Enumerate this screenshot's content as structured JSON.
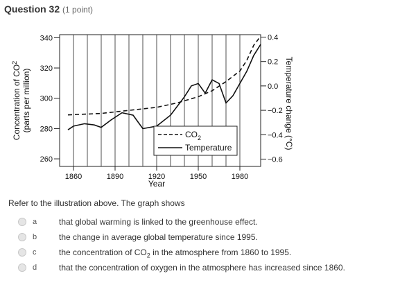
{
  "question": {
    "title": "Question 32",
    "points": "(1 point)"
  },
  "prompt": "Refer to the illustration above. The graph shows",
  "choices": [
    {
      "letter": "a",
      "text": "that global warming is linked to the greenhouse effect."
    },
    {
      "letter": "b",
      "text": "the change in average global temperature since 1995."
    },
    {
      "letter": "c",
      "text_before": "the concentration of CO",
      "text_sub": "2",
      "text_after": " in the atmosphere from 1860 to 1995."
    },
    {
      "letter": "d",
      "text": "that the concentration of oxygen in the atmosphere has increased since 1860."
    }
  ],
  "chart_data": {
    "type": "line",
    "xlabel": "Year",
    "ylabel_left_line1": "Concentration of CO",
    "ylabel_left_sub": "2",
    "ylabel_left_line2": "(parts per million)",
    "ylabel_right": "Temperature change (°C)",
    "x_ticks": [
      1860,
      1890,
      1920,
      1950,
      1980
    ],
    "y_left_ticks": [
      260,
      280,
      300,
      320,
      340
    ],
    "y_right_ticks": [
      "0.4",
      "0.2",
      "0.0",
      "−0.2",
      "−0.4",
      "−0.6"
    ],
    "y_right_values": [
      0.4,
      0.2,
      0.0,
      -0.2,
      -0.4,
      -0.6
    ],
    "xlim": [
      1850,
      1995
    ],
    "ylim_left": [
      255,
      342
    ],
    "ylim_right": [
      -0.66,
      0.42
    ],
    "grid_years": [
      1860,
      1870,
      1880,
      1890,
      1900,
      1910,
      1920,
      1930,
      1940,
      1950,
      1960,
      1970,
      1980
    ],
    "legend": {
      "placement": "bottom-right",
      "co2_label": "CO",
      "co2_sub": "2",
      "temp_label": "Temperature"
    },
    "series": [
      {
        "name": "CO2",
        "style": "dashed",
        "axis": "left",
        "x": [
          1856,
          1880,
          1900,
          1920,
          1935,
          1950,
          1960,
          1970,
          1980,
          1985,
          1990,
          1995
        ],
        "values": [
          289,
          290,
          292,
          294,
          297,
          301,
          305,
          311,
          318,
          325,
          335,
          341
        ]
      },
      {
        "name": "Temperature",
        "style": "solid",
        "axis": "right",
        "x": [
          1856,
          1860,
          1868,
          1875,
          1880,
          1887,
          1895,
          1903,
          1910,
          1920,
          1930,
          1940,
          1945,
          1950,
          1955,
          1960,
          1965,
          1970,
          1975,
          1980,
          1985,
          1990,
          1995
        ],
        "values": [
          -0.36,
          -0.33,
          -0.31,
          -0.32,
          -0.34,
          -0.28,
          -0.22,
          -0.24,
          -0.35,
          -0.33,
          -0.24,
          -0.09,
          0.0,
          0.02,
          -0.06,
          0.05,
          0.02,
          -0.14,
          -0.08,
          0.02,
          0.12,
          0.25,
          0.34
        ]
      }
    ]
  }
}
